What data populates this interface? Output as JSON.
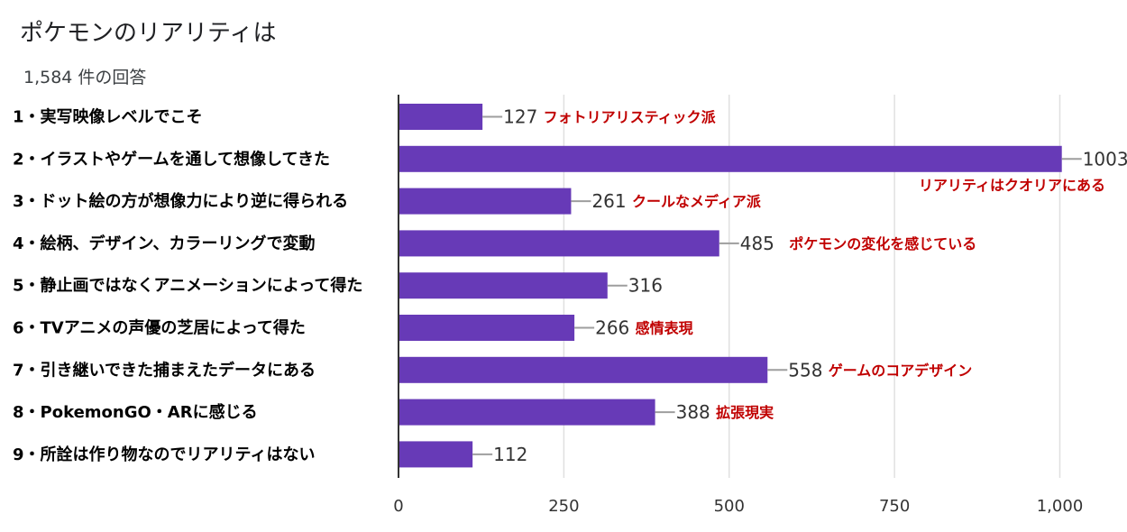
{
  "header": {
    "title": "ポケモンのリアリティは",
    "subtitle": "1,584 件の回答"
  },
  "colors": {
    "bar": "#673ab7",
    "annotation": "#c00000",
    "grid": "#e0e0e0",
    "axis": "#333333"
  },
  "chart_data": {
    "type": "bar",
    "orientation": "horizontal",
    "categories": [
      "1・実写映像レベルでこそ",
      "2・イラストやゲームを通して想像してきた",
      "3・ドット絵の方が想像力により逆に得られる",
      "4・絵柄、デザイン、カラーリングで変動",
      "5・静止画ではなくアニメーションによって得た",
      "6・TVアニメの声優の芝居によって得た",
      "7・引き継いできた捕まえたデータにある",
      "8・PokemonGO・ARに感じる",
      "9・所詮は作り物なのでリアリティはない"
    ],
    "values": [
      127,
      1003,
      261,
      485,
      316,
      266,
      558,
      388,
      112
    ],
    "value_labels": [
      "127",
      "1003",
      "261",
      "485",
      "316",
      "266",
      "558",
      "388",
      "112"
    ],
    "annotations": [
      "フォトリアリスティック派",
      "リアリティはクオリアにある",
      "クールなメディア派",
      "ポケモンの変化を感じている",
      "",
      "感情表現",
      "ゲームのコアデザイン",
      "拡張現実",
      ""
    ],
    "xlim": [
      0,
      1100
    ],
    "x_ticks": [
      0,
      250,
      500,
      750,
      1000
    ],
    "x_tick_labels": [
      "0",
      "250",
      "500",
      "750",
      "1,000"
    ],
    "grid": true
  }
}
